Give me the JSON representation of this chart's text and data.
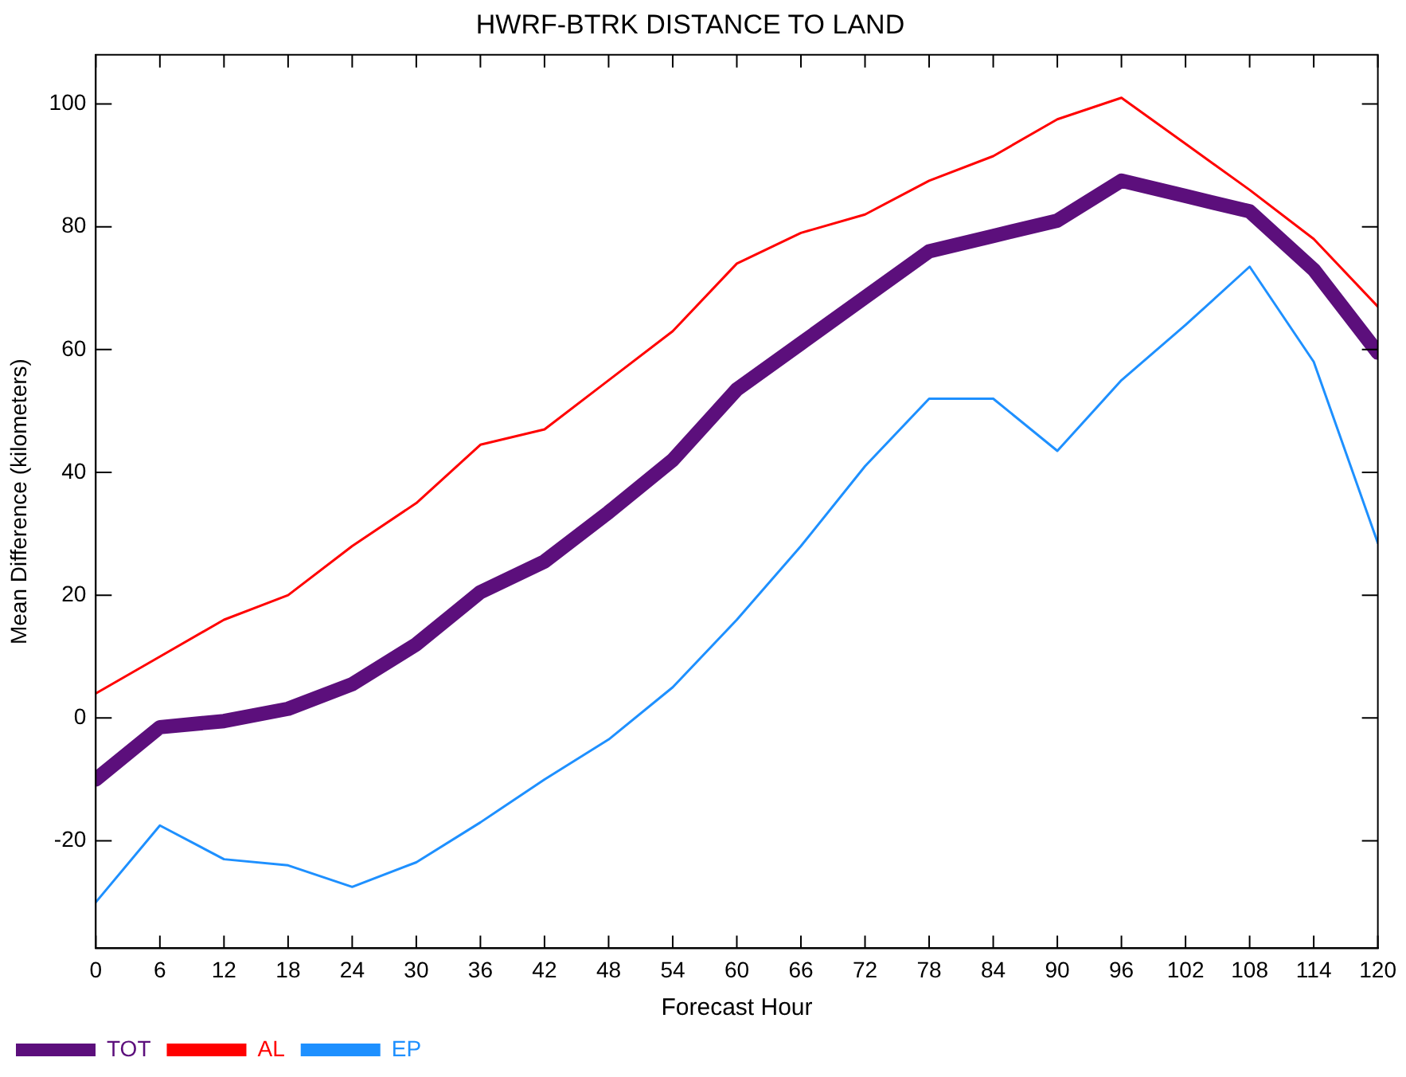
{
  "chart_data": {
    "type": "line",
    "title": "HWRF-BTRK DISTANCE TO LAND",
    "xlabel": "Forecast Hour",
    "ylabel": "Mean Difference (kilometers)",
    "x": [
      0,
      6,
      12,
      18,
      24,
      30,
      36,
      42,
      48,
      54,
      60,
      66,
      72,
      78,
      84,
      90,
      96,
      102,
      108,
      114,
      120
    ],
    "series": [
      {
        "name": "TOT",
        "color": "#5c0f7c",
        "values": [
          -10,
          -1.5,
          -0.5,
          1.5,
          5.5,
          12,
          20.5,
          25.5,
          33.5,
          42,
          53.5,
          61,
          68.5,
          76,
          78.5,
          81,
          87.5,
          85,
          82.5,
          73,
          59.5
        ]
      },
      {
        "name": "AL",
        "color": "#ff0000",
        "values": [
          4,
          10,
          16,
          20,
          28,
          35,
          44.5,
          47,
          55,
          63,
          74,
          79,
          82,
          87.5,
          91.5,
          97.5,
          101,
          93.5,
          86,
          78,
          67
        ]
      },
      {
        "name": "EP",
        "color": "#1e90ff",
        "values": [
          -30,
          -17.5,
          -23,
          -24,
          -27.5,
          -23.5,
          -17,
          -10,
          -3.5,
          5,
          16,
          28,
          41,
          52,
          52,
          43.5,
          55,
          64,
          73.5,
          58,
          28.5
        ]
      }
    ],
    "xlim": [
      0,
      120
    ],
    "xticks": [
      0,
      6,
      12,
      18,
      24,
      30,
      36,
      42,
      48,
      54,
      60,
      66,
      72,
      78,
      84,
      90,
      96,
      102,
      108,
      114,
      120
    ],
    "ylim": [
      -37.5,
      108
    ],
    "yticks": [
      -20,
      0,
      20,
      40,
      60,
      80,
      100
    ],
    "grid": false,
    "legend": "bottom left",
    "marker": "none",
    "line_style": "solid"
  }
}
